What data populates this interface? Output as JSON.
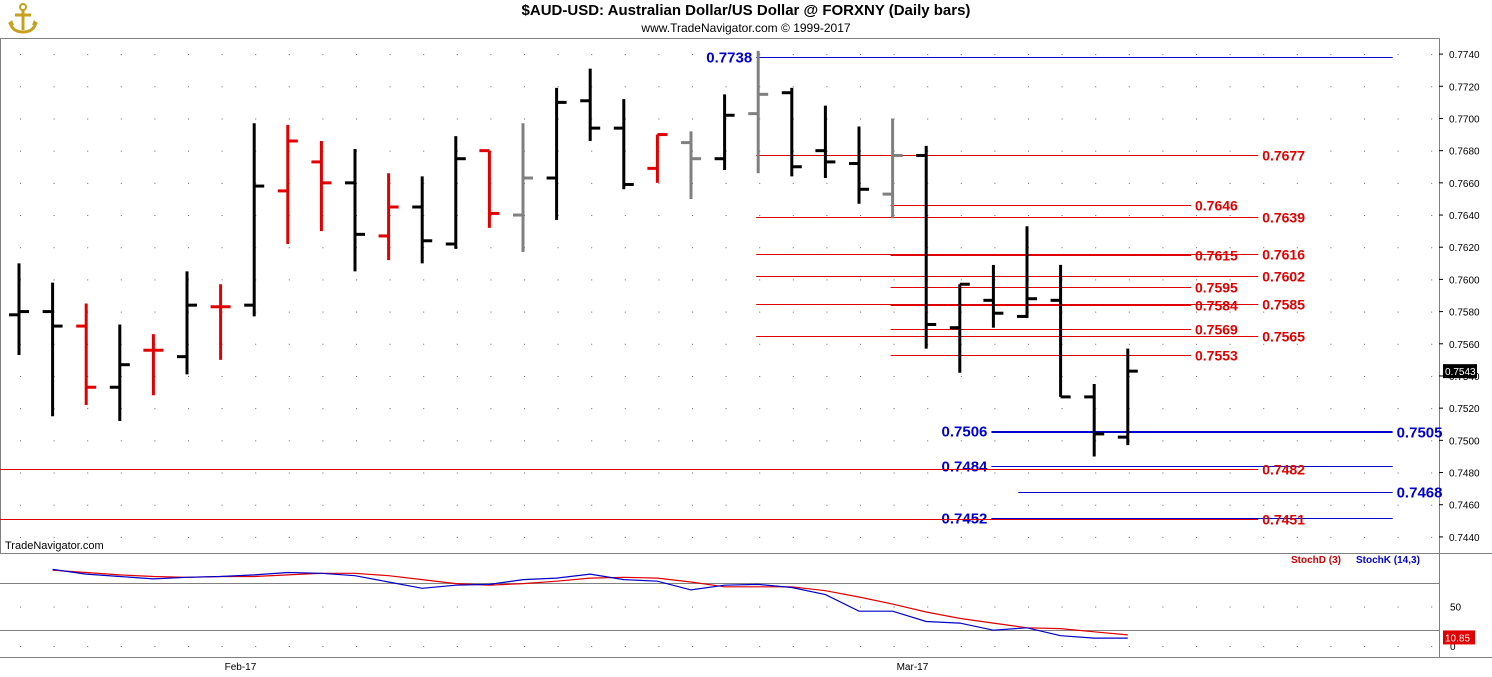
{
  "header": {
    "title": "$AUD-USD:  Australian Dollar/US Dollar @ FORXNY  (Daily bars)",
    "copyright": "www.TradeNavigator.com © 1999-2017",
    "logo_icon": "anchor-logo-icon"
  },
  "watermark": "TradeNavigator.com",
  "colors": {
    "up_bar": "#000000",
    "down_bar": "#e00000",
    "inside_bar": "#808080",
    "red_level": "#e00000",
    "blue_level": "#0000cc",
    "stoch_d": "#cc0000",
    "stoch_k": "#0000cc"
  },
  "chart_data": [
    {
      "type": "ohlc",
      "title": "$AUD-USD:  Australian Dollar/US Dollar @ FORXNY  (Daily bars)",
      "ylim": [
        0.743,
        0.775
      ],
      "y_ticks": [
        "0.7740",
        "0.7720",
        "0.7700",
        "0.7680",
        "0.7660",
        "0.7640",
        "0.7620",
        "0.7600",
        "0.7580",
        "0.7560",
        "0.7540",
        "0.7520",
        "0.7500",
        "0.7480",
        "0.7460",
        "0.7440"
      ],
      "x_labels": [
        {
          "label": "Feb-17",
          "index": 6
        },
        {
          "label": "Mar-17",
          "index": 26
        }
      ],
      "last_price": "0.7543",
      "grid": "dotted",
      "bars": [
        {
          "o": 0.7578,
          "h": 0.761,
          "l": 0.7553,
          "c": 0.758,
          "color": "black"
        },
        {
          "o": 0.758,
          "h": 0.7598,
          "l": 0.7515,
          "c": 0.7571,
          "color": "black"
        },
        {
          "o": 0.7571,
          "h": 0.7585,
          "l": 0.7522,
          "c": 0.7533,
          "color": "red"
        },
        {
          "o": 0.7533,
          "h": 0.7572,
          "l": 0.7512,
          "c": 0.7547,
          "color": "black"
        },
        {
          "o": 0.7556,
          "h": 0.7566,
          "l": 0.7528,
          "c": 0.7556,
          "color": "red"
        },
        {
          "o": 0.7552,
          "h": 0.7605,
          "l": 0.7541,
          "c": 0.7584,
          "color": "black"
        },
        {
          "o": 0.7583,
          "h": 0.7597,
          "l": 0.755,
          "c": 0.7583,
          "color": "red"
        },
        {
          "o": 0.7584,
          "h": 0.7697,
          "l": 0.7577,
          "c": 0.7658,
          "color": "black"
        },
        {
          "o": 0.7655,
          "h": 0.7696,
          "l": 0.7622,
          "c": 0.7686,
          "color": "red"
        },
        {
          "o": 0.7673,
          "h": 0.7686,
          "l": 0.763,
          "c": 0.766,
          "color": "red"
        },
        {
          "o": 0.766,
          "h": 0.7681,
          "l": 0.7605,
          "c": 0.7628,
          "color": "black"
        },
        {
          "o": 0.7627,
          "h": 0.7666,
          "l": 0.7612,
          "c": 0.7645,
          "color": "red"
        },
        {
          "o": 0.7645,
          "h": 0.7664,
          "l": 0.761,
          "c": 0.7624,
          "color": "black"
        },
        {
          "o": 0.7622,
          "h": 0.7689,
          "l": 0.7619,
          "c": 0.7675,
          "color": "black"
        },
        {
          "o": 0.768,
          "h": 0.768,
          "l": 0.7632,
          "c": 0.7641,
          "color": "red"
        },
        {
          "o": 0.764,
          "h": 0.7697,
          "l": 0.7617,
          "c": 0.7663,
          "color": "gray"
        },
        {
          "o": 0.7663,
          "h": 0.7719,
          "l": 0.7637,
          "c": 0.771,
          "color": "black"
        },
        {
          "o": 0.7711,
          "h": 0.7731,
          "l": 0.7686,
          "c": 0.7694,
          "color": "black"
        },
        {
          "o": 0.7694,
          "h": 0.7712,
          "l": 0.7656,
          "c": 0.7659,
          "color": "black"
        },
        {
          "o": 0.7669,
          "h": 0.769,
          "l": 0.766,
          "c": 0.769,
          "color": "red"
        },
        {
          "o": 0.7685,
          "h": 0.7692,
          "l": 0.765,
          "c": 0.7675,
          "color": "gray"
        },
        {
          "o": 0.7675,
          "h": 0.7715,
          "l": 0.7668,
          "c": 0.7702,
          "color": "black"
        },
        {
          "o": 0.7703,
          "h": 0.7742,
          "l": 0.7666,
          "c": 0.7715,
          "color": "gray"
        },
        {
          "o": 0.7716,
          "h": 0.7719,
          "l": 0.7664,
          "c": 0.767,
          "color": "black"
        },
        {
          "o": 0.768,
          "h": 0.7708,
          "l": 0.7663,
          "c": 0.7673,
          "color": "black"
        },
        {
          "o": 0.7672,
          "h": 0.7695,
          "l": 0.7647,
          "c": 0.7656,
          "color": "black"
        },
        {
          "o": 0.7653,
          "h": 0.77,
          "l": 0.7638,
          "c": 0.7677,
          "color": "gray"
        },
        {
          "o": 0.7677,
          "h": 0.7683,
          "l": 0.7557,
          "c": 0.7572,
          "color": "black"
        },
        {
          "o": 0.757,
          "h": 0.7597,
          "l": 0.7542,
          "c": 0.7597,
          "color": "black"
        },
        {
          "o": 0.7587,
          "h": 0.7609,
          "l": 0.757,
          "c": 0.7579,
          "color": "black"
        },
        {
          "o": 0.7577,
          "h": 0.7633,
          "l": 0.7576,
          "c": 0.7588,
          "color": "black"
        },
        {
          "o": 0.7587,
          "h": 0.7609,
          "l": 0.7527,
          "c": 0.7527,
          "color": "black"
        },
        {
          "o": 0.7527,
          "h": 0.7535,
          "l": 0.749,
          "c": 0.7504,
          "color": "black"
        },
        {
          "o": 0.7502,
          "h": 0.7557,
          "l": 0.7497,
          "c": 0.7543,
          "color": "black"
        }
      ],
      "levels": [
        {
          "label": "0.7738",
          "value": 0.7738,
          "color": "blue",
          "start": 22,
          "end": 41,
          "label_pos": "left"
        },
        {
          "label": "0.7677",
          "value": 0.7677,
          "color": "red",
          "start": 22,
          "end": 37,
          "label_pos": "right"
        },
        {
          "label": "0.7646",
          "value": 0.7646,
          "color": "red",
          "start": 26,
          "end": 35,
          "label_pos": "right"
        },
        {
          "label": "0.7639",
          "value": 0.7639,
          "color": "red",
          "start": 22,
          "end": 37,
          "label_pos": "right"
        },
        {
          "label": "0.7615",
          "value": 0.7615,
          "color": "red",
          "start": 26,
          "end": 35,
          "label_pos": "right"
        },
        {
          "label": "0.7616",
          "value": 0.7616,
          "color": "red",
          "start": 22,
          "end": 37,
          "label_pos": "right"
        },
        {
          "label": "0.7602",
          "value": 0.7602,
          "color": "red",
          "start": 22,
          "end": 37,
          "label_pos": "right"
        },
        {
          "label": "0.7595",
          "value": 0.7595,
          "color": "red",
          "start": 26,
          "end": 35,
          "label_pos": "right"
        },
        {
          "label": "0.7584",
          "value": 0.7584,
          "color": "red",
          "start": 26,
          "end": 35,
          "label_pos": "right"
        },
        {
          "label": "0.7585",
          "value": 0.7585,
          "color": "red",
          "start": 22,
          "end": 37,
          "label_pos": "right"
        },
        {
          "label": "0.7569",
          "value": 0.7569,
          "color": "red",
          "start": 26,
          "end": 35,
          "label_pos": "right"
        },
        {
          "label": "0.7565",
          "value": 0.7565,
          "color": "red",
          "start": 22,
          "end": 37,
          "label_pos": "right"
        },
        {
          "label": "0.7553",
          "value": 0.7553,
          "color": "red",
          "start": 26,
          "end": 35,
          "label_pos": "right"
        },
        {
          "label": "0.7506",
          "value": 0.7506,
          "color": "blue",
          "start": 29,
          "end": 41,
          "label_pos": "left"
        },
        {
          "label": "0.7505",
          "value": 0.7505,
          "color": "blue",
          "start": 29,
          "end": 41,
          "label_pos": "right"
        },
        {
          "label": "0.7484",
          "value": 0.7484,
          "color": "blue",
          "start": 29,
          "end": 41,
          "label_pos": "left"
        },
        {
          "label": "0.7482",
          "value": 0.7482,
          "color": "red",
          "start": -1,
          "end": 37,
          "label_pos": "right"
        },
        {
          "label": "0.7468",
          "value": 0.7468,
          "color": "blue",
          "start": 29.8,
          "end": 41,
          "label_pos": "right"
        },
        {
          "label": "0.7452",
          "value": 0.7452,
          "color": "blue",
          "start": 29,
          "end": 41,
          "label_pos": "left"
        },
        {
          "label": "0.7451",
          "value": 0.7451,
          "color": "red",
          "start": -1,
          "end": 37,
          "label_pos": "right"
        }
      ]
    },
    {
      "type": "line",
      "title": "",
      "ylim": [
        0,
        100
      ],
      "y_ticks": [
        "50",
        "0"
      ],
      "reference_lines": [
        80,
        20
      ],
      "last_value": "10.85",
      "series": [
        {
          "name": "StochD (3)",
          "color": "red",
          "values": [
            {
              "i": 1,
              "v": 96
            },
            {
              "i": 2,
              "v": 93
            },
            {
              "i": 3,
              "v": 90
            },
            {
              "i": 4,
              "v": 88
            },
            {
              "i": 5,
              "v": 87
            },
            {
              "i": 6,
              "v": 88
            },
            {
              "i": 7,
              "v": 88
            },
            {
              "i": 8,
              "v": 90
            },
            {
              "i": 9,
              "v": 92
            },
            {
              "i": 10,
              "v": 92
            },
            {
              "i": 11,
              "v": 89
            },
            {
              "i": 12,
              "v": 84
            },
            {
              "i": 13,
              "v": 79
            },
            {
              "i": 14,
              "v": 77
            },
            {
              "i": 15,
              "v": 79
            },
            {
              "i": 16,
              "v": 82
            },
            {
              "i": 17,
              "v": 86
            },
            {
              "i": 18,
              "v": 87
            },
            {
              "i": 19,
              "v": 86
            },
            {
              "i": 20,
              "v": 81
            },
            {
              "i": 21,
              "v": 75
            },
            {
              "i": 22,
              "v": 75
            },
            {
              "i": 23,
              "v": 75
            },
            {
              "i": 24,
              "v": 70
            },
            {
              "i": 25,
              "v": 62
            },
            {
              "i": 26,
              "v": 53
            },
            {
              "i": 27,
              "v": 43
            },
            {
              "i": 28,
              "v": 35
            },
            {
              "i": 29,
              "v": 29
            },
            {
              "i": 30,
              "v": 23
            },
            {
              "i": 31,
              "v": 22
            },
            {
              "i": 32,
              "v": 18
            },
            {
              "i": 33,
              "v": 14
            }
          ]
        },
        {
          "name": "StochK (14,3)",
          "color": "blue",
          "values": [
            {
              "i": 1,
              "v": 97
            },
            {
              "i": 2,
              "v": 91
            },
            {
              "i": 3,
              "v": 88
            },
            {
              "i": 4,
              "v": 85
            },
            {
              "i": 5,
              "v": 87
            },
            {
              "i": 6,
              "v": 88
            },
            {
              "i": 7,
              "v": 90
            },
            {
              "i": 8,
              "v": 93
            },
            {
              "i": 9,
              "v": 92
            },
            {
              "i": 10,
              "v": 89
            },
            {
              "i": 11,
              "v": 81
            },
            {
              "i": 12,
              "v": 73
            },
            {
              "i": 13,
              "v": 77
            },
            {
              "i": 14,
              "v": 78
            },
            {
              "i": 15,
              "v": 84
            },
            {
              "i": 16,
              "v": 86
            },
            {
              "i": 17,
              "v": 91
            },
            {
              "i": 18,
              "v": 84
            },
            {
              "i": 19,
              "v": 82
            },
            {
              "i": 20,
              "v": 71
            },
            {
              "i": 21,
              "v": 77
            },
            {
              "i": 22,
              "v": 78
            },
            {
              "i": 23,
              "v": 74
            },
            {
              "i": 24,
              "v": 65
            },
            {
              "i": 25,
              "v": 44
            },
            {
              "i": 26,
              "v": 44
            },
            {
              "i": 27,
              "v": 31
            },
            {
              "i": 28,
              "v": 29
            },
            {
              "i": 29,
              "v": 20
            },
            {
              "i": 30,
              "v": 23
            },
            {
              "i": 31,
              "v": 13
            },
            {
              "i": 32,
              "v": 10
            },
            {
              "i": 33,
              "v": 10
            }
          ]
        }
      ]
    }
  ]
}
